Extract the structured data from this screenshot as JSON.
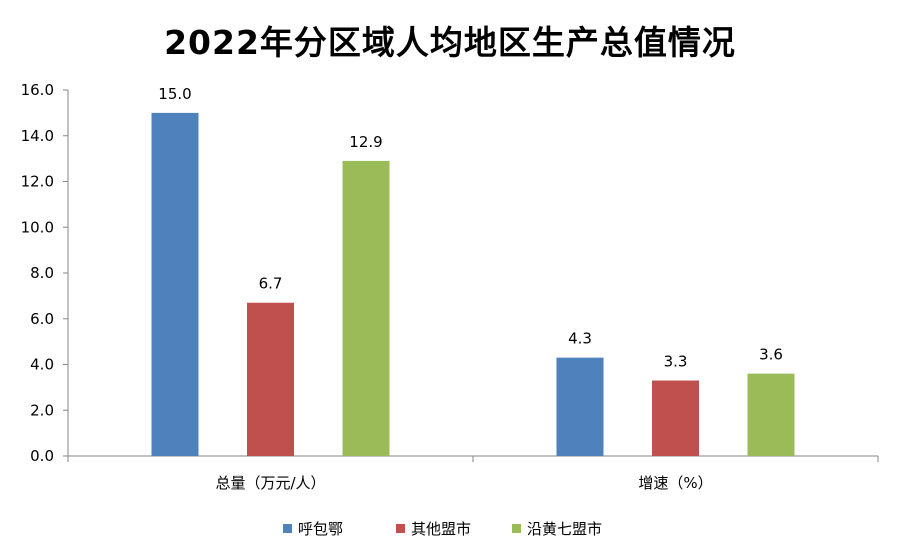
{
  "chart_data": {
    "type": "bar",
    "title": "2022年分区域人均地区生产总值情况",
    "categories": [
      "总量（万元/人）",
      "增速（%）"
    ],
    "series": [
      {
        "name": "呼包鄂",
        "values": [
          15.0,
          4.3
        ],
        "color": "#4F81BD"
      },
      {
        "name": "其他盟市",
        "values": [
          6.7,
          3.3
        ],
        "color": "#C0504D"
      },
      {
        "name": "沿黄七盟市",
        "values": [
          12.9,
          3.6
        ],
        "color": "#9BBB59"
      }
    ],
    "ylim": [
      0,
      16
    ],
    "yticks": [
      "0.0",
      "2.0",
      "4.0",
      "6.0",
      "8.0",
      "10.0",
      "12.0",
      "14.0",
      "16.0"
    ],
    "data_labels": [
      [
        "15.0",
        "4.3"
      ],
      [
        "6.7",
        "3.3"
      ],
      [
        "12.9",
        "3.6"
      ]
    ],
    "grid": false,
    "legend_position": "bottom"
  }
}
